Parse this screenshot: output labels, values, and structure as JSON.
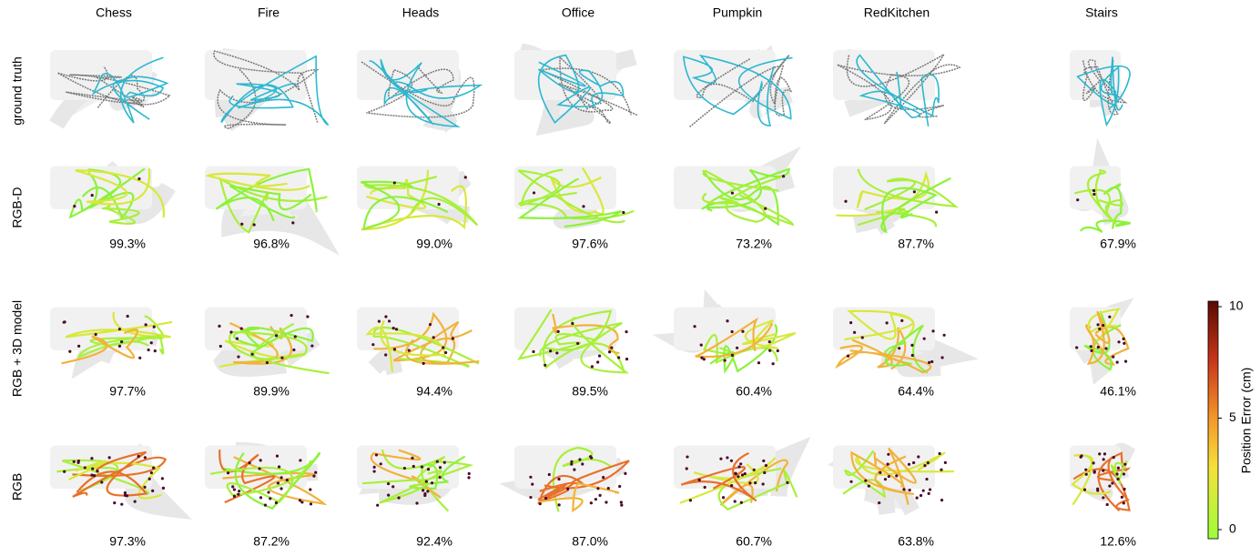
{
  "columns": [
    "Chess",
    "Fire",
    "Heads",
    "Office",
    "Pumpkin",
    "RedKitchen",
    "Stairs"
  ],
  "rows": [
    {
      "label": "ground truth",
      "scores": null
    },
    {
      "label": "RGB-D",
      "scores": [
        "99.3%",
        "96.8%",
        "99.0%",
        "97.6%",
        "73.2%",
        "87.7%",
        "67.9%"
      ]
    },
    {
      "label": "RGB + 3D model",
      "scores": [
        "97.7%",
        "89.9%",
        "94.4%",
        "89.5%",
        "60.4%",
        "64.4%",
        "46.1%"
      ]
    },
    {
      "label": "RGB",
      "scores": [
        "97.3%",
        "87.2%",
        "92.4%",
        "87.0%",
        "60.7%",
        "63.8%",
        "12.6%"
      ]
    }
  ],
  "colorbar": {
    "label": "Position Error (cm)",
    "ticks": [
      0,
      5,
      10
    ]
  }
}
